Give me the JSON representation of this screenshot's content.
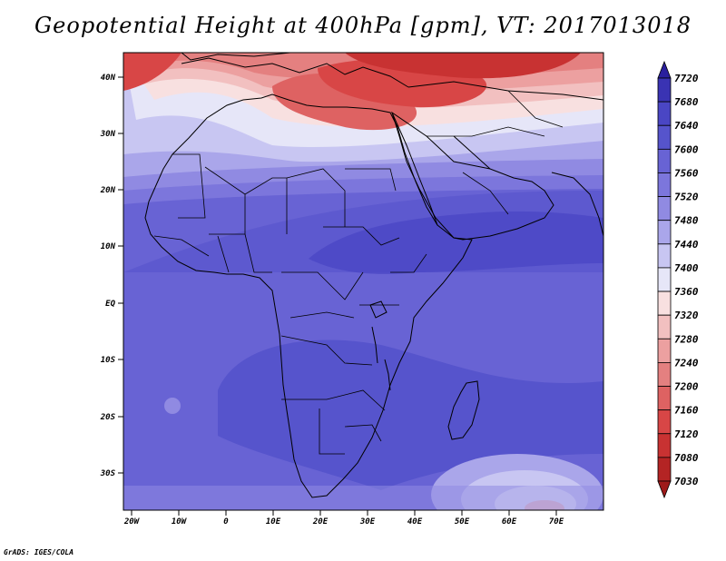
{
  "title": "Geopotential Height at 400hPa [gpm], VT: 2017013018",
  "credit": "GrADS: IGES/COLA",
  "map": {
    "lat_labels": [
      "40N",
      "30N",
      "20N",
      "10N",
      "EQ",
      "10S",
      "20S",
      "30S"
    ],
    "lon_labels": [
      "20W",
      "10W",
      "0",
      "10E",
      "20E",
      "30E",
      "40E",
      "50E",
      "60E",
      "70E"
    ]
  },
  "colorbar": {
    "levels": [
      "7720",
      "7680",
      "7640",
      "7600",
      "7560",
      "7520",
      "7480",
      "7440",
      "7400",
      "7360",
      "7320",
      "7280",
      "7240",
      "7200",
      "7160",
      "7120",
      "7080",
      "7030"
    ],
    "colors": [
      "#2a1f9e",
      "#3a33b3",
      "#4a46c4",
      "#5654cc",
      "#6863d4",
      "#7c76dc",
      "#908ae2",
      "#aaa6ea",
      "#c8c6f2",
      "#e6e6f8",
      "#f8e0e0",
      "#f2c0c0",
      "#eca0a0",
      "#e48080",
      "#de6262",
      "#d84646",
      "#c83232",
      "#b42424",
      "#9e1a1a"
    ]
  },
  "colors": {
    "land_outline": "#000000",
    "frame": "#000000"
  }
}
